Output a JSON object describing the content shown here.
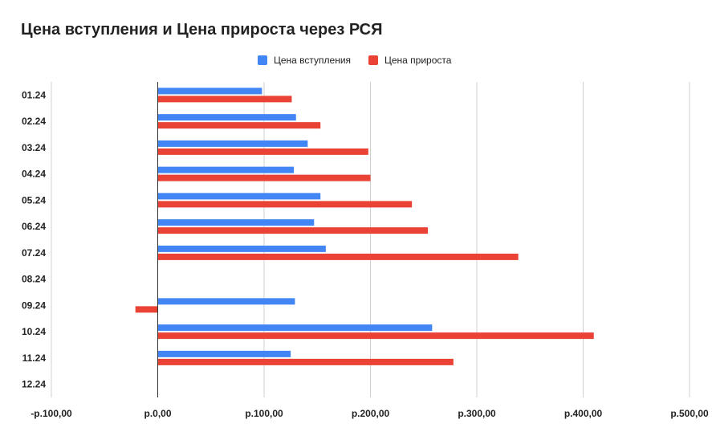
{
  "chart_data": {
    "type": "bar",
    "orientation": "horizontal",
    "title": "Цена вступления и Цена прироста через РСЯ",
    "categories": [
      "01.24",
      "02.24",
      "03.24",
      "04.24",
      "05.24",
      "06.24",
      "07.24",
      "08.24",
      "09.24",
      "10.24",
      "11.24",
      "12.24"
    ],
    "series": [
      {
        "name": "Цена вступления",
        "color": "#4285f4",
        "values": [
          98,
          130,
          141,
          128,
          153,
          147,
          158,
          null,
          129,
          258,
          125,
          null
        ]
      },
      {
        "name": "Цена прироста",
        "color": "#ea4335",
        "values": [
          126,
          153,
          198,
          200,
          239,
          254,
          339,
          null,
          -21,
          410,
          278,
          null
        ]
      }
    ],
    "xlim": [
      -100,
      500
    ],
    "xticks": [
      -100,
      0,
      100,
      200,
      300,
      400,
      500
    ],
    "xtick_labels": [
      "-р.100,00",
      "р.0,00",
      "р.100,00",
      "р.200,00",
      "р.300,00",
      "р.400,00",
      "р.500,00"
    ],
    "xlabel": "",
    "ylabel": "",
    "grid": true,
    "legend_position": "top"
  }
}
